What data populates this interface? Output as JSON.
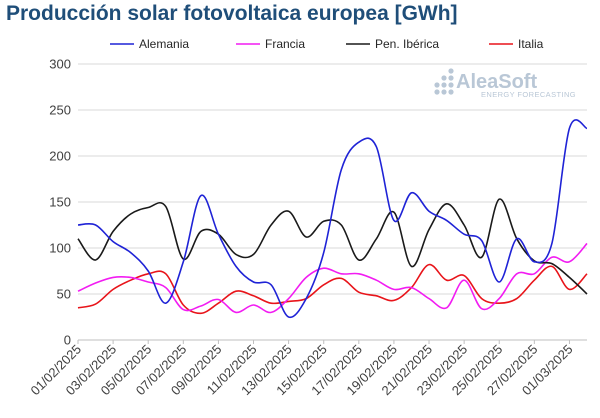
{
  "title": "Producción solar fotovoltaica europea [GWh]",
  "logo": {
    "name": "AleaSoft",
    "tagline": "ENERGY FORECASTING",
    "color": "#b9c7d6"
  },
  "chart_data": {
    "type": "line",
    "ylim": [
      0,
      300
    ],
    "yticks": [
      0,
      50,
      100,
      150,
      200,
      250,
      300
    ],
    "grid": true,
    "legend_position": "top",
    "x": [
      "01/02/2025",
      "02/02/2025",
      "03/02/2025",
      "04/02/2025",
      "05/02/2025",
      "06/02/2025",
      "07/02/2025",
      "08/02/2025",
      "09/02/2025",
      "10/02/2025",
      "11/02/2025",
      "12/02/2025",
      "13/02/2025",
      "14/02/2025",
      "15/02/2025",
      "16/02/2025",
      "17/02/2025",
      "18/02/2025",
      "19/02/2025",
      "20/02/2025",
      "21/02/2025",
      "22/02/2025",
      "23/02/2025",
      "24/02/2025",
      "25/02/2025",
      "26/02/2025",
      "27/02/2025",
      "28/02/2025",
      "01/03/2025",
      "02/03/2025"
    ],
    "xtick_labels": [
      "01/02/2025",
      "03/02/2025",
      "05/02/2025",
      "07/02/2025",
      "09/02/2025",
      "11/02/2025",
      "13/02/2025",
      "15/02/2025",
      "17/02/2025",
      "19/02/2025",
      "21/02/2025",
      "23/02/2025",
      "25/02/2025",
      "27/02/2025",
      "01/03/2025"
    ],
    "series": [
      {
        "name": "Alemania",
        "color": "#1f23d6",
        "values": [
          125,
          125,
          107,
          95,
          75,
          40,
          85,
          157,
          115,
          80,
          63,
          60,
          25,
          45,
          95,
          185,
          215,
          210,
          130,
          160,
          140,
          130,
          115,
          108,
          63,
          110,
          85,
          105,
          230,
          230
        ]
      },
      {
        "name": "Francia",
        "color": "#f21cf2",
        "values": [
          53,
          62,
          68,
          68,
          63,
          57,
          33,
          37,
          44,
          30,
          38,
          30,
          45,
          68,
          78,
          72,
          72,
          65,
          55,
          57,
          45,
          35,
          65,
          34,
          45,
          72,
          72,
          90,
          85,
          105
        ]
      },
      {
        "name": "Pen. Ibérica",
        "color": "#1a1a1a",
        "values": [
          110,
          87,
          118,
          137,
          144,
          145,
          88,
          118,
          115,
          93,
          93,
          125,
          140,
          112,
          129,
          125,
          87,
          110,
          139,
          80,
          120,
          148,
          125,
          90,
          153,
          110,
          86,
          83,
          68,
          50
        ]
      },
      {
        "name": "Italia",
        "color": "#e8141a",
        "values": [
          35,
          39,
          55,
          65,
          72,
          72,
          38,
          29,
          40,
          53,
          48,
          40,
          42,
          45,
          60,
          67,
          52,
          48,
          43,
          57,
          82,
          65,
          70,
          45,
          40,
          45,
          65,
          80,
          55,
          72
        ]
      }
    ]
  }
}
